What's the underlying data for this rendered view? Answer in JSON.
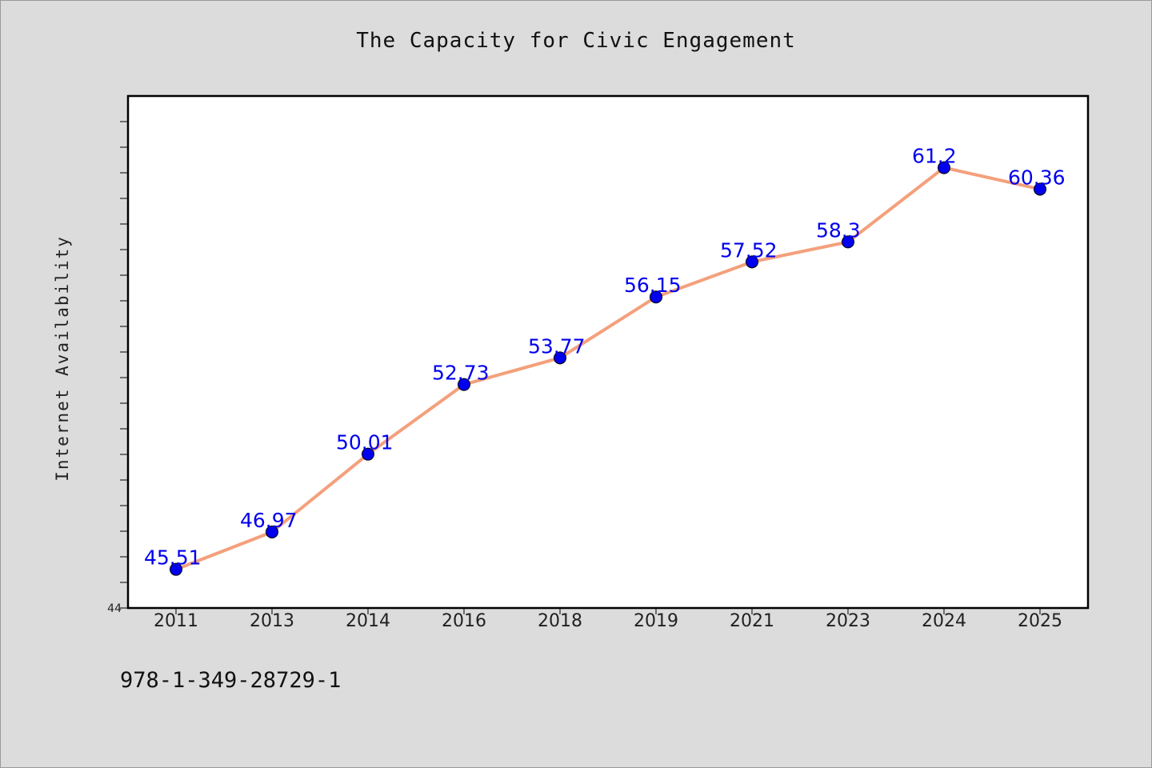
{
  "chart_data": {
    "type": "line",
    "title": "The Capacity for Civic Engagement",
    "ylabel": "Internet Availability",
    "xlabel": "",
    "categories": [
      "2011",
      "2013",
      "2014",
      "2016",
      "2018",
      "2019",
      "2021",
      "2023",
      "2024",
      "2025"
    ],
    "series": [
      {
        "values": [
          45.51,
          46.97,
          50.01,
          52.73,
          53.77,
          56.15,
          57.52,
          58.3,
          61.2,
          60.36
        ],
        "data_labels": [
          "45.51",
          "46.97",
          "50.01",
          "52.73",
          "53.77",
          "56.15",
          "57.52",
          "58.3",
          "61.2",
          "60.36"
        ]
      }
    ],
    "ylim": [
      44,
      64
    ],
    "y_tick_step": 1,
    "y_min_label": "44",
    "line_color": "#f4a07c",
    "marker_color": "#0000ee",
    "label_color": "#0000ee",
    "grid": false,
    "legend": "none"
  },
  "footer": {
    "code": "978-1-349-28729-1"
  }
}
